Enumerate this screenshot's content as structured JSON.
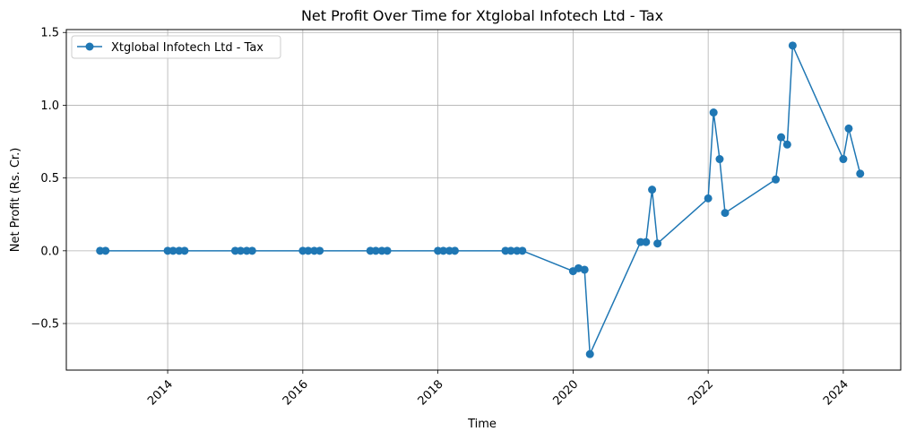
{
  "chart_data": {
    "type": "line",
    "title": "Net Profit Over Time for Xtglobal Infotech Ltd - Tax",
    "xlabel": "Time",
    "ylabel": "Net Profit (Rs. Cr.)",
    "xlim": [
      2012.5,
      2024.85
    ],
    "ylim": [
      -0.82,
      1.52
    ],
    "xticks": [
      2014,
      2016,
      2018,
      2020,
      2022,
      2024
    ],
    "xtick_labels": [
      "2014",
      "2016",
      "2018",
      "2020",
      "2022",
      "2024"
    ],
    "yticks": [
      -0.5,
      0.0,
      0.5,
      1.0,
      1.5
    ],
    "ytick_labels": [
      "−0.5",
      "0.0",
      "0.5",
      "1.0",
      "1.5"
    ],
    "grid": true,
    "legend_position": "top-left",
    "series": [
      {
        "name": "Xtglobal Infotech Ltd - Tax",
        "color": "#1f77b4",
        "marker": "circle",
        "points": [
          {
            "x": 2013.0,
            "y": 0.0
          },
          {
            "x": 2013.08,
            "y": 0.0
          },
          {
            "x": 2014.0,
            "y": 0.0
          },
          {
            "x": 2014.08,
            "y": 0.0
          },
          {
            "x": 2014.17,
            "y": 0.0
          },
          {
            "x": 2014.25,
            "y": 0.0
          },
          {
            "x": 2015.0,
            "y": 0.0
          },
          {
            "x": 2015.08,
            "y": 0.0
          },
          {
            "x": 2015.17,
            "y": 0.0
          },
          {
            "x": 2015.25,
            "y": 0.0
          },
          {
            "x": 2016.0,
            "y": 0.0
          },
          {
            "x": 2016.08,
            "y": 0.0
          },
          {
            "x": 2016.17,
            "y": 0.0
          },
          {
            "x": 2016.25,
            "y": 0.0
          },
          {
            "x": 2017.0,
            "y": 0.0
          },
          {
            "x": 2017.08,
            "y": 0.0
          },
          {
            "x": 2017.17,
            "y": 0.0
          },
          {
            "x": 2017.25,
            "y": 0.0
          },
          {
            "x": 2018.0,
            "y": 0.0
          },
          {
            "x": 2018.08,
            "y": 0.0
          },
          {
            "x": 2018.17,
            "y": 0.0
          },
          {
            "x": 2018.25,
            "y": 0.0
          },
          {
            "x": 2019.0,
            "y": 0.0
          },
          {
            "x": 2019.08,
            "y": 0.0
          },
          {
            "x": 2019.17,
            "y": 0.0
          },
          {
            "x": 2019.25,
            "y": 0.0
          },
          {
            "x": 2020.0,
            "y": -0.14
          },
          {
            "x": 2020.08,
            "y": -0.12
          },
          {
            "x": 2020.17,
            "y": -0.13
          },
          {
            "x": 2020.25,
            "y": -0.71
          },
          {
            "x": 2021.0,
            "y": 0.06
          },
          {
            "x": 2021.08,
            "y": 0.06
          },
          {
            "x": 2021.17,
            "y": 0.42
          },
          {
            "x": 2021.25,
            "y": 0.05
          },
          {
            "x": 2022.0,
            "y": 0.36
          },
          {
            "x": 2022.08,
            "y": 0.95
          },
          {
            "x": 2022.17,
            "y": 0.63
          },
          {
            "x": 2022.25,
            "y": 0.26
          },
          {
            "x": 2023.0,
            "y": 0.49
          },
          {
            "x": 2023.08,
            "y": 0.78
          },
          {
            "x": 2023.17,
            "y": 0.73
          },
          {
            "x": 2023.25,
            "y": 1.41
          },
          {
            "x": 2024.0,
            "y": 0.63
          },
          {
            "x": 2024.08,
            "y": 0.84
          },
          {
            "x": 2024.25,
            "y": 0.53
          }
        ]
      }
    ]
  }
}
